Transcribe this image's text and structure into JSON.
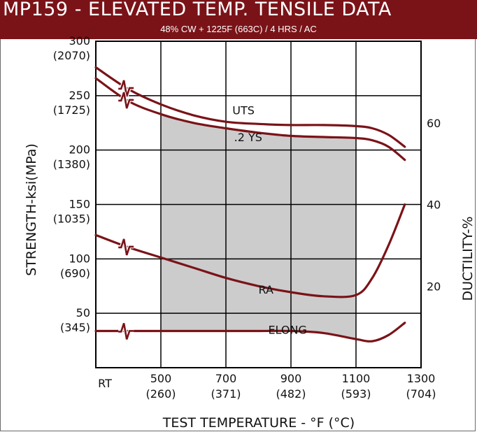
{
  "header": {
    "title": "MP159 - ELEVATED TEMP. TENSILE DATA",
    "subtitle": "48% CW + 1225F (663C) / 4 HRS / AC"
  },
  "colors": {
    "header_bg": "#7a1318",
    "curve": "#7a1318",
    "shade": "#cccccc",
    "grid": "#000000"
  },
  "chart_data": {
    "type": "line",
    "title": "MP159 - ELEVATED TEMP. TENSILE DATA",
    "subtitle": "48% CW + 1225F (663C) / 4 HRS / AC",
    "xlabel": "TEST TEMPERATURE - °F (°C)",
    "ylabel": "STRENGTH-ksi(MPa)",
    "ylabel_right": "DUCTILITY-%",
    "xlim": [
      300,
      1300
    ],
    "ylim": [
      0,
      300
    ],
    "ylim_right": [
      0,
      80
    ],
    "grid": true,
    "legend": "none",
    "x_ticks": [
      {
        "x": 300,
        "line1": "RT",
        "line2": ""
      },
      {
        "x": 500,
        "line1": "500",
        "line2": "(260)"
      },
      {
        "x": 700,
        "line1": "700",
        "line2": "(371)"
      },
      {
        "x": 900,
        "line1": "900",
        "line2": "(482)"
      },
      {
        "x": 1100,
        "line1": "1100",
        "line2": "(593)"
      },
      {
        "x": 1300,
        "line1": "1300",
        "line2": "(704)"
      }
    ],
    "y_ticks": [
      {
        "y": 300,
        "line1": "300",
        "line2": "(2070)"
      },
      {
        "y": 250,
        "line1": "250",
        "line2": "(1725)"
      },
      {
        "y": 200,
        "line1": "200",
        "line2": "(1380)"
      },
      {
        "y": 150,
        "line1": "150",
        "line2": "(1035)"
      },
      {
        "y": 100,
        "line1": "100",
        "line2": "(690)"
      },
      {
        "y": 50,
        "line1": "50",
        "line2": "(345)"
      }
    ],
    "y_right_ticks": [
      {
        "y": 60,
        "label": "60"
      },
      {
        "y": 40,
        "label": "40"
      },
      {
        "y": 20,
        "label": "20"
      }
    ],
    "axis_break_x": 395,
    "series": [
      {
        "name": "UTS",
        "axis": "left",
        "x": [
          300,
          400,
          500,
          600,
          700,
          800,
          900,
          1000,
          1100,
          1150,
          1200,
          1250
        ],
        "y": [
          276,
          256,
          242,
          232,
          226,
          224,
          223,
          223,
          222,
          220,
          214,
          203
        ]
      },
      {
        "name": ".2 YS",
        "axis": "left",
        "x": [
          300,
          400,
          500,
          600,
          700,
          800,
          900,
          1000,
          1100,
          1150,
          1200,
          1250
        ],
        "y": [
          266,
          245,
          233,
          225,
          220,
          216,
          213,
          212,
          211,
          209,
          203,
          191
        ]
      },
      {
        "name": "RA",
        "axis": "right",
        "x": [
          300,
          400,
          500,
          600,
          700,
          800,
          900,
          1000,
          1100,
          1150,
          1200,
          1250
        ],
        "y": [
          32.5,
          29.5,
          27,
          24.5,
          22,
          20,
          18.5,
          17.5,
          17.8,
          22,
          30,
          40
        ]
      },
      {
        "name": "ELONG",
        "axis": "right",
        "x": [
          300,
          400,
          500,
          600,
          700,
          800,
          900,
          1000,
          1100,
          1150,
          1200,
          1250
        ],
        "y": [
          9,
          9,
          9,
          9,
          9,
          9,
          9,
          8.5,
          7,
          6.5,
          8,
          11
        ]
      }
    ],
    "label_positions": [
      {
        "series": "UTS",
        "x": 720,
        "y": 233
      },
      {
        "series": ".2 YS",
        "x": 725,
        "y": 208
      },
      {
        "series": "RA",
        "x": 800,
        "y": 68
      },
      {
        "series": "ELONG",
        "x": 830,
        "y": 31
      }
    ],
    "shaded_region": "gray fill spanning 500-1100 F, bounded above by the .2 YS curve and below by the ELONG curve"
  }
}
